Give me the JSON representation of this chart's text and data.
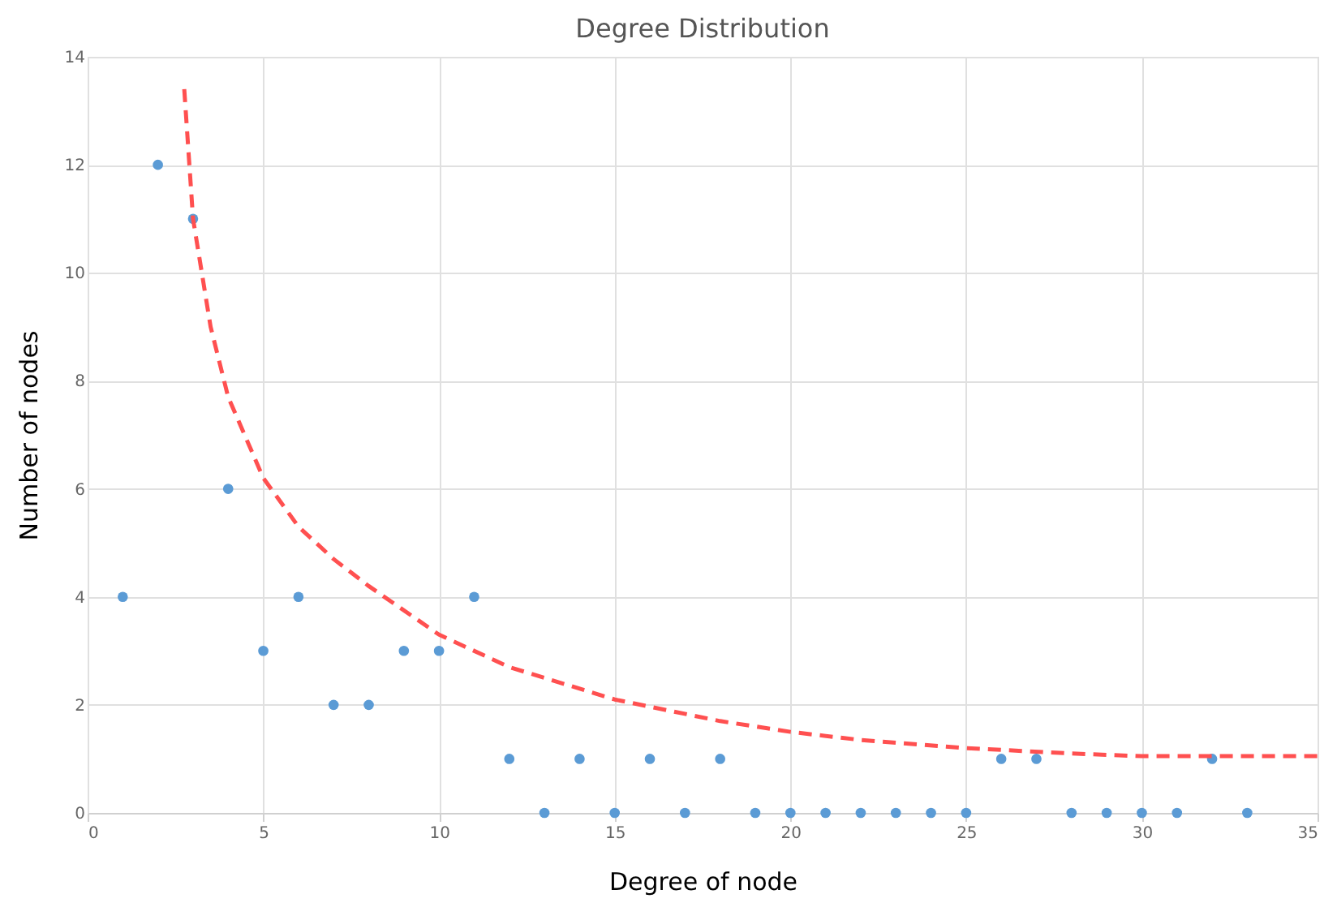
{
  "chart_data": {
    "type": "scatter",
    "title": "Degree Distribution",
    "xlabel": "Degree of node",
    "ylabel": "Number of nodes",
    "xlim": [
      0,
      35
    ],
    "xticks": [
      0,
      5,
      10,
      15,
      20,
      25,
      30,
      35
    ],
    "ylim": [
      0,
      14
    ],
    "yticks": [
      0,
      2,
      4,
      6,
      8,
      10,
      12,
      14
    ],
    "grid": true,
    "legend": false,
    "marker": "circle",
    "series": [
      {
        "color": "#5b9bd5",
        "x": [
          1,
          2,
          3,
          4,
          5,
          6,
          7,
          8,
          9,
          10,
          11,
          12,
          13,
          14,
          15,
          16,
          17,
          18,
          19,
          20,
          21,
          22,
          23,
          24,
          25,
          26,
          27,
          28,
          29,
          30,
          31,
          32,
          33
        ],
        "values": [
          4,
          12,
          11,
          6,
          3,
          4,
          2,
          2,
          3,
          3,
          4,
          1,
          0,
          1,
          0,
          1,
          0,
          1,
          0,
          0,
          0,
          0,
          0,
          0,
          0,
          1,
          1,
          0,
          0,
          0,
          0,
          1,
          0
        ]
      },
      {
        "type": "line",
        "color": "#ff5050",
        "line_style": "dashed",
        "marker": "none",
        "x": [
          2.75,
          3,
          3.5,
          4,
          5,
          6,
          7,
          8,
          10,
          12,
          15,
          18,
          20,
          22,
          25,
          28,
          30,
          35
        ],
        "values": [
          13.4,
          11,
          9,
          7.7,
          6.2,
          5.3,
          4.7,
          4.2,
          3.3,
          2.7,
          2.1,
          1.7,
          1.5,
          1.35,
          1.2,
          1.1,
          1.05,
          1.05
        ]
      }
    ]
  }
}
